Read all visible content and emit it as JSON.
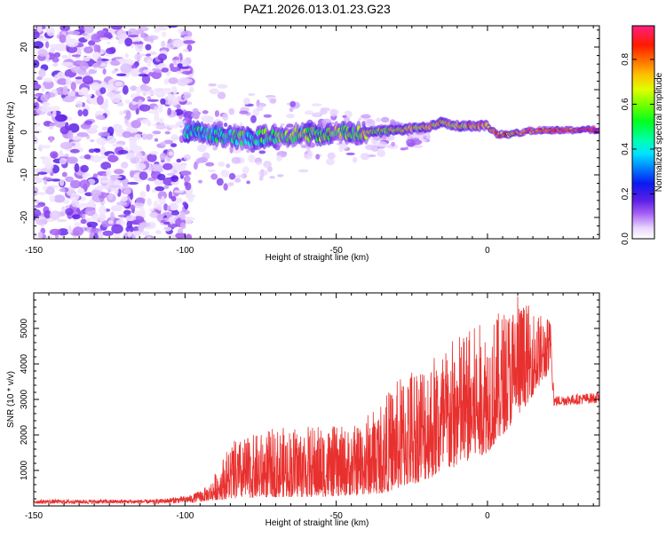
{
  "title": "PAZ1.2026.013.01.23.G23",
  "chart_data": [
    {
      "type": "heatmap",
      "xlabel": "Height of straight line (km)",
      "ylabel": "Frequency (Hz)",
      "xlim": [
        -150,
        37
      ],
      "ylim": [
        -25,
        25
      ],
      "xticks": [
        -150,
        -100,
        -50,
        0
      ],
      "yticks": [
        -20,
        -10,
        0,
        10,
        20
      ],
      "colorbar": {
        "label": "Normalized spectral amplitude",
        "range": [
          0,
          0.95
        ],
        "ticks": [
          0.0,
          0.2,
          0.4,
          0.6,
          0.8
        ]
      },
      "signal_track": [
        {
          "x": -100,
          "f": 0.0
        },
        {
          "x": -90,
          "f": -0.5
        },
        {
          "x": -80,
          "f": -1.5
        },
        {
          "x": -70,
          "f": -0.8
        },
        {
          "x": -60,
          "f": -0.5
        },
        {
          "x": -50,
          "f": -0.3
        },
        {
          "x": -40,
          "f": 0.0
        },
        {
          "x": -30,
          "f": 0.5
        },
        {
          "x": -20,
          "f": 1.2
        },
        {
          "x": -15,
          "f": 2.5
        },
        {
          "x": -10,
          "f": 1.5
        },
        {
          "x": 0,
          "f": 1.5
        },
        {
          "x": 3,
          "f": -0.5
        },
        {
          "x": 8,
          "f": -0.5
        },
        {
          "x": 13,
          "f": 0.3
        },
        {
          "x": 20,
          "f": 0.5
        },
        {
          "x": 37,
          "f": 0.6
        }
      ]
    },
    {
      "type": "line",
      "xlabel": "Height of straight line (km)",
      "ylabel": "SNR (10 * v/v)",
      "xlim": [
        -150,
        37
      ],
      "ylim": [
        0,
        6000
      ],
      "xticks": [
        -150,
        -100,
        -50,
        0
      ],
      "yticks": [
        1000,
        2000,
        3000,
        4000,
        5000
      ],
      "color": "#e8312f",
      "envelope": [
        {
          "x": -150,
          "low": 60,
          "high": 180
        },
        {
          "x": -110,
          "low": 60,
          "high": 180
        },
        {
          "x": -98,
          "low": 80,
          "high": 300
        },
        {
          "x": -92,
          "low": 150,
          "high": 600
        },
        {
          "x": -85,
          "low": 200,
          "high": 1800
        },
        {
          "x": -70,
          "low": 250,
          "high": 2200
        },
        {
          "x": -55,
          "low": 250,
          "high": 2300
        },
        {
          "x": -45,
          "low": 300,
          "high": 2200
        },
        {
          "x": -35,
          "low": 350,
          "high": 3000
        },
        {
          "x": -25,
          "low": 600,
          "high": 4100
        },
        {
          "x": -15,
          "low": 900,
          "high": 4500
        },
        {
          "x": -8,
          "low": 1200,
          "high": 5000
        },
        {
          "x": 0,
          "low": 1500,
          "high": 5200
        },
        {
          "x": 10,
          "low": 2500,
          "high": 5900
        },
        {
          "x": 18,
          "low": 3500,
          "high": 5400
        },
        {
          "x": 21,
          "low": 3800,
          "high": 5300
        },
        {
          "x": 22,
          "low": 2800,
          "high": 3100
        },
        {
          "x": 37,
          "low": 2900,
          "high": 3200
        }
      ],
      "peak": {
        "x": 10,
        "value": 5900
      }
    }
  ]
}
